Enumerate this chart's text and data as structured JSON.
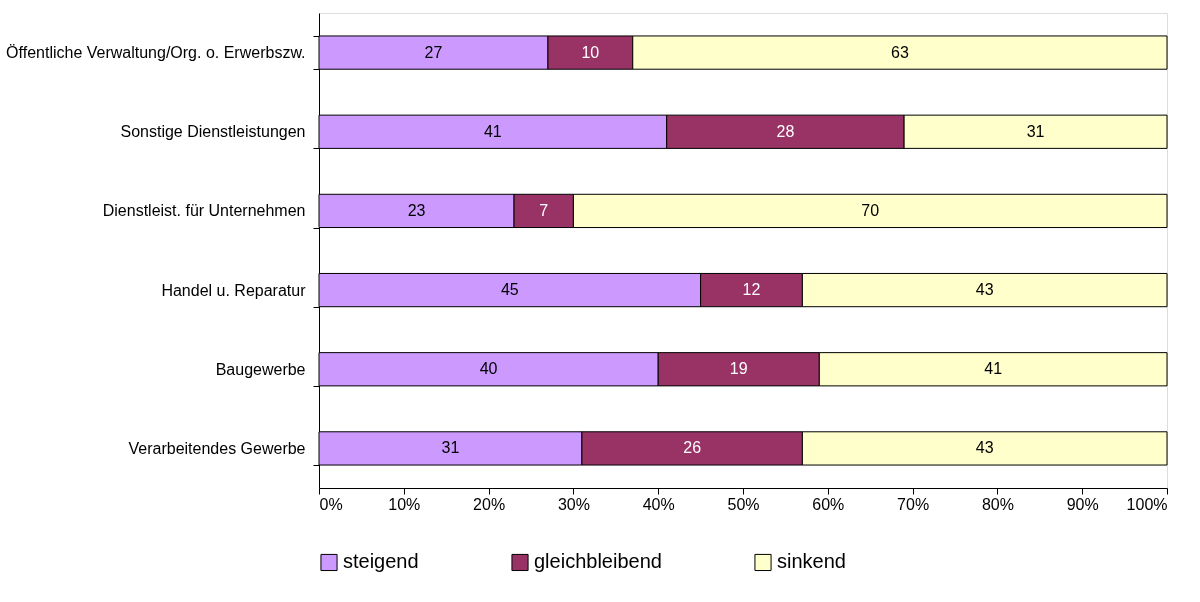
{
  "chart_data": {
    "type": "bar",
    "orientation": "horizontal",
    "stacked": true,
    "data_labels": true,
    "legend": "bottom",
    "grid": false,
    "categories": [
      "Öffentliche Verwaltung/Org. o. Erwerbszw.",
      "Sonstige Dienstleistungen",
      "Dienstleist. für Unternehmen",
      "Handel u. Reparatur",
      "Baugewerbe",
      "Verarbeitendes Gewerbe"
    ],
    "series": [
      {
        "name": "steigend",
        "color": "#cc99ff",
        "values": [
          27,
          41,
          23,
          45,
          40,
          31
        ]
      },
      {
        "name": "gleichbleibend",
        "color": "#993366",
        "values": [
          10,
          28,
          7,
          12,
          19,
          26
        ]
      },
      {
        "name": "sinkend",
        "color": "#ffffcc",
        "values": [
          63,
          31,
          70,
          43,
          41,
          43
        ]
      }
    ],
    "xlim": [
      0,
      100
    ],
    "xticks": [
      {
        "value": 0,
        "label": "0%"
      },
      {
        "value": 10,
        "label": "10%"
      },
      {
        "value": 20,
        "label": "20%"
      },
      {
        "value": 30,
        "label": "30%"
      },
      {
        "value": 40,
        "label": "40%"
      },
      {
        "value": 50,
        "label": "50%"
      },
      {
        "value": 60,
        "label": "60%"
      },
      {
        "value": 70,
        "label": "70%"
      },
      {
        "value": 80,
        "label": "80%"
      },
      {
        "value": 90,
        "label": "90%"
      },
      {
        "value": 100,
        "label": "100%"
      }
    ]
  }
}
